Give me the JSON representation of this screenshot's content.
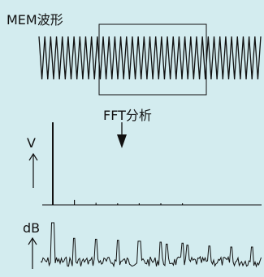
{
  "labels": {
    "waveform_title": "MEM波形",
    "fft_label": "FFT分析",
    "v_axis": "V",
    "db_axis": "dB"
  },
  "colors": {
    "background": "#d3ecef",
    "line": "#111111"
  },
  "chart_data": [
    {
      "type": "line",
      "title": "MEM波形",
      "xlabel": "",
      "ylabel": "",
      "cycles": 38,
      "grid": false
    },
    {
      "type": "bar",
      "title": "",
      "xlabel": "",
      "ylabel": "V",
      "harmonics": [
        1,
        3,
        5,
        7,
        9,
        11,
        13
      ],
      "values": [
        1.0,
        0.06,
        0.025,
        0.014,
        0.01,
        0.007,
        0.006
      ],
      "ylim": [
        0,
        1
      ],
      "grid": false
    },
    {
      "type": "line",
      "title": "",
      "xlabel": "",
      "ylabel": "dB",
      "grid": false
    }
  ]
}
